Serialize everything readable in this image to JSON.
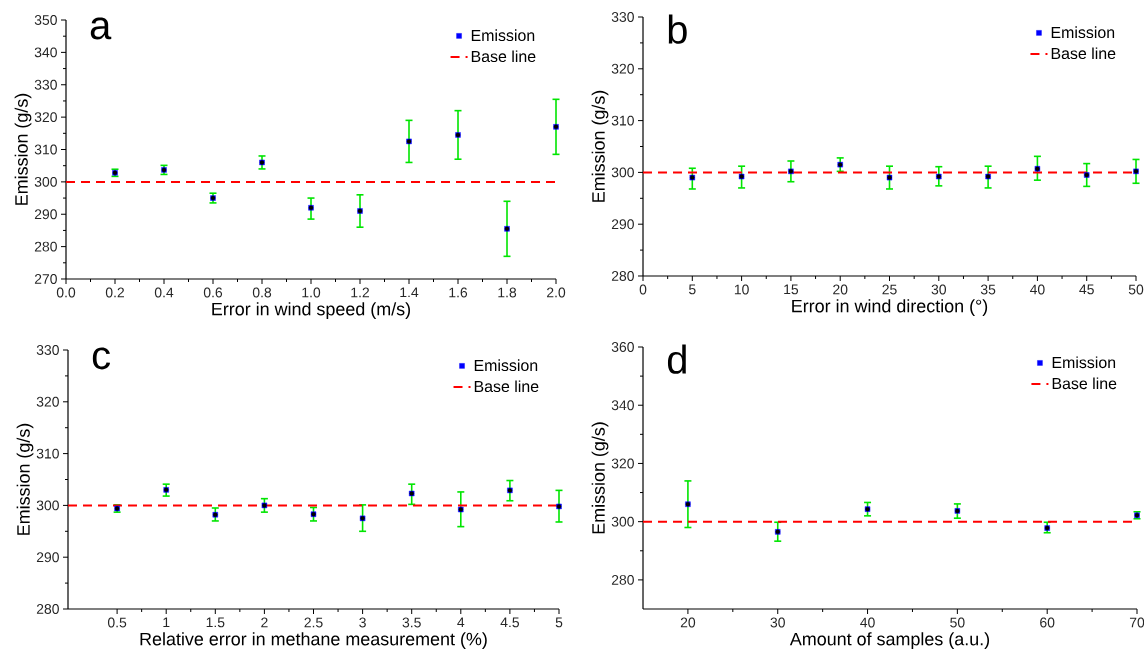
{
  "chart_data": [
    {
      "type": "scatter",
      "title": "a",
      "xlabel": "Error in wind speed (m/s)",
      "ylabel": "Emission (g/s)",
      "marker": "square",
      "legend": "top right",
      "x": [
        0.2,
        0.4,
        0.6,
        0.8,
        1.0,
        1.2,
        1.4,
        1.6,
        1.8,
        2.0
      ],
      "series": [
        {
          "name": "Emission",
          "color": "#0000ff",
          "values": [
            302.8,
            303.7,
            295,
            306,
            292,
            291,
            312.5,
            314.5,
            285.5,
            317
          ],
          "errors": [
            [
              301.7,
              303.9
            ],
            [
              302.3,
              305.1
            ],
            [
              293.5,
              296.5
            ],
            [
              304,
              308
            ],
            [
              288.5,
              295
            ],
            [
              286,
              296
            ],
            [
              306,
              319
            ],
            [
              307,
              322
            ],
            [
              277,
              294
            ],
            [
              308.5,
              325.5
            ]
          ]
        }
      ],
      "ref_lines": [
        {
          "axis": "y",
          "value": 300,
          "label": "Base line",
          "color": "#ff0000",
          "line_style": "dashed"
        }
      ],
      "xlim": [
        0,
        2
      ],
      "xticks": [
        {
          "value": 0,
          "label": "0.0"
        },
        0.2,
        0.4,
        0.6,
        0.8,
        {
          "value": 1,
          "label": "1.0"
        },
        1.2,
        1.4,
        1.6,
        1.8,
        {
          "value": 2,
          "label": "2.0"
        }
      ],
      "ylim": [
        270,
        350
      ],
      "yticks": [
        270,
        280,
        290,
        300,
        310,
        320,
        330,
        340,
        350
      ]
    },
    {
      "type": "scatter",
      "title": "b",
      "xlabel": "Error in wind direction (°)",
      "ylabel": "Emission (g/s)",
      "marker": "square",
      "legend": "top right",
      "x": [
        5,
        10,
        15,
        20,
        25,
        30,
        35,
        40,
        45,
        50
      ],
      "series": [
        {
          "name": "Emission",
          "color": "#0000ff",
          "values": [
            299,
            299.2,
            300.2,
            301.5,
            299,
            299.2,
            299.2,
            300.7,
            299.5,
            300.2
          ],
          "errors": [
            [
              296.8,
              300.8
            ],
            [
              297,
              301.2
            ],
            [
              298.2,
              302.2
            ],
            [
              300.2,
              302.8
            ],
            [
              296.8,
              301.2
            ],
            [
              297.4,
              301.1
            ],
            [
              297,
              301.2
            ],
            [
              298.5,
              303.1
            ],
            [
              297.3,
              301.7
            ],
            [
              297.9,
              302.5
            ]
          ]
        }
      ],
      "ref_lines": [
        {
          "axis": "y",
          "value": 300,
          "label": "Base line",
          "color": "#ff0000",
          "line_style": "dashed"
        }
      ],
      "xlim": [
        0,
        50
      ],
      "xticks": [
        0,
        5,
        10,
        15,
        20,
        25,
        30,
        35,
        40,
        45,
        50
      ],
      "ylim": [
        280,
        330
      ],
      "yticks": [
        280,
        290,
        300,
        310,
        320,
        330
      ]
    },
    {
      "type": "scatter",
      "title": "c",
      "xlabel": "Relative error in methane measurement (%)",
      "ylabel": "Emission (g/s)",
      "marker": "square",
      "legend": "top right",
      "x": [
        0.5,
        1,
        1.5,
        2,
        2.5,
        3,
        3.5,
        4,
        4.5,
        5
      ],
      "series": [
        {
          "name": "Emission",
          "color": "#0000ff",
          "values": [
            299.4,
            303,
            298.2,
            300,
            298.3,
            297.5,
            302.3,
            299.2,
            302.9,
            299.8
          ],
          "errors": [
            [
              298.7,
              300.1
            ],
            [
              301.8,
              304.1
            ],
            [
              297,
              299.5
            ],
            [
              298.7,
              301.3
            ],
            [
              297,
              299.6
            ],
            [
              295,
              300.1
            ],
            [
              300.2,
              304.1
            ],
            [
              295.9,
              302.6
            ],
            [
              300.9,
              304.8
            ],
            [
              296.8,
              302.9
            ]
          ]
        }
      ],
      "ref_lines": [
        {
          "axis": "y",
          "value": 300,
          "label": "Base line",
          "color": "#ff0000",
          "line_style": "dashed"
        }
      ],
      "xlim": [
        0,
        5
      ],
      "xticks": [
        0.5,
        1,
        1.5,
        2,
        2.5,
        3,
        3.5,
        4,
        4.5,
        5
      ],
      "ylim": [
        280,
        330
      ],
      "yticks": [
        280,
        290,
        300,
        310,
        320,
        330
      ]
    },
    {
      "type": "scatter",
      "title": "d",
      "xlabel": "Amount of samples (a.u.)",
      "ylabel": "Emission (g/s)",
      "marker": "square",
      "legend": "top right",
      "x": [
        20,
        30,
        40,
        50,
        60,
        70
      ],
      "series": [
        {
          "name": "Emission",
          "color": "#0000ff",
          "values": [
            306,
            296.5,
            304.3,
            303.7,
            297.8,
            302.2
          ],
          "errors": [
            [
              298,
              314
            ],
            [
              293.3,
              299.8
            ],
            [
              302,
              306.6
            ],
            [
              301.2,
              306.1
            ],
            [
              296.2,
              299.8
            ],
            [
              301,
              303.4
            ]
          ]
        }
      ],
      "ref_lines": [
        {
          "axis": "y",
          "value": 300,
          "label": "Base line",
          "color": "#ff0000",
          "line_style": "dashed"
        }
      ],
      "xlim": [
        15,
        70
      ],
      "xticks": [
        20,
        30,
        40,
        50,
        60,
        70
      ],
      "ylim": [
        270,
        360
      ],
      "yticks": [
        280,
        300,
        320,
        340,
        360
      ]
    }
  ]
}
